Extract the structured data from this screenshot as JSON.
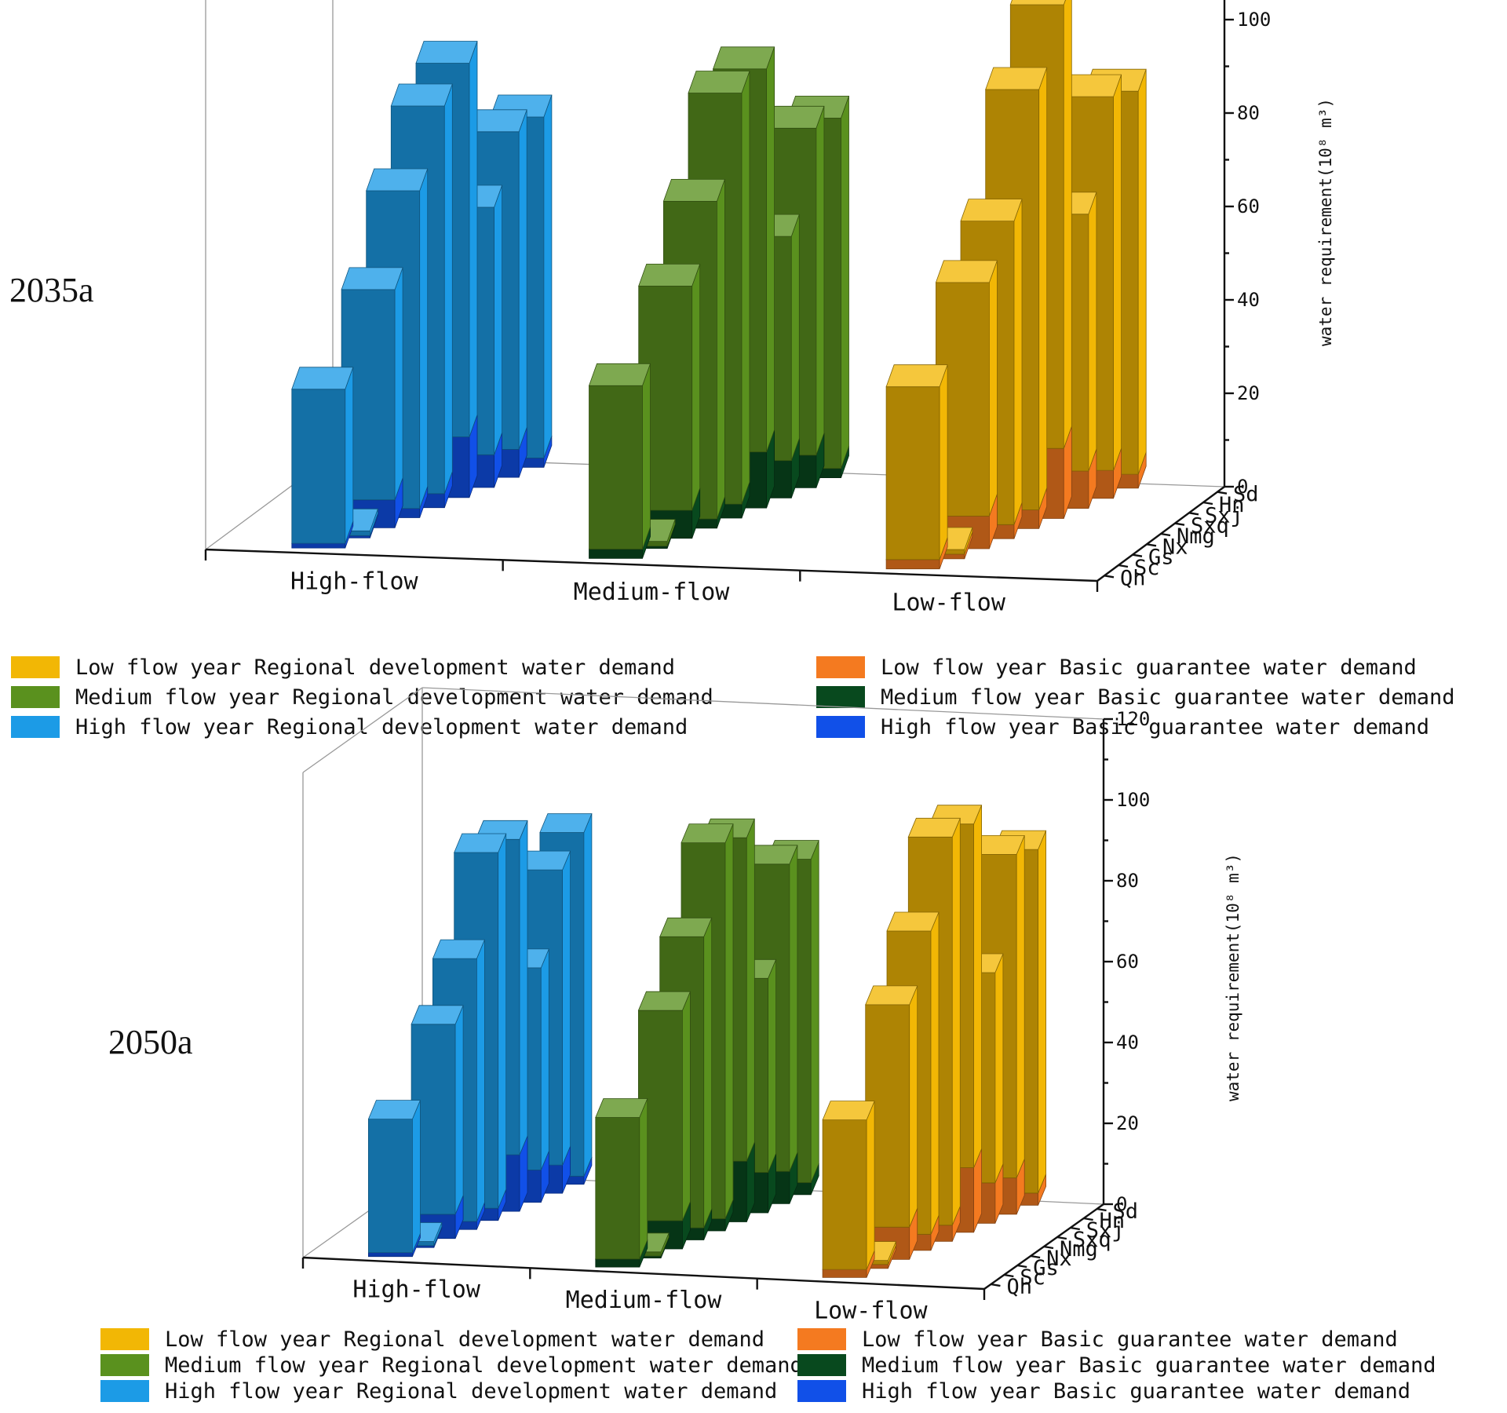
{
  "chart_data": [
    {
      "type": "bar",
      "title": "2035a",
      "ylabel": "water requirement(10⁸ m³)",
      "ylim": [
        0,
        120
      ],
      "yticks": [
        "0",
        "20",
        "40",
        "60",
        "80",
        "100",
        "120"
      ],
      "flow_categories": [
        "High-flow",
        "Medium-flow",
        "Low-flow"
      ],
      "regions": [
        "Qh",
        "Sc",
        "Gs",
        "Nx",
        "Nmg",
        "Sxq",
        "Sxj",
        "Hn",
        "Sd"
      ],
      "series": [
        {
          "name": "High flow year Regional development water demand",
          "flow": "High-flow",
          "kind": "regional",
          "color": "#1c9be6",
          "values": [
            33,
            1,
            45,
            68,
            83,
            80,
            53,
            68,
            73
          ]
        },
        {
          "name": "High flow year Basic guarantee water demand",
          "flow": "High-flow",
          "kind": "basic",
          "color": "#1150e8",
          "values": [
            1,
            0.5,
            6,
            2,
            3,
            13,
            7,
            6,
            2
          ]
        },
        {
          "name": "Medium flow year Regional development water demand",
          "flow": "Medium-flow",
          "kind": "regional",
          "color": "#5a911e",
          "values": [
            35,
            1,
            48,
            68,
            88,
            82,
            48,
            70,
            75
          ]
        },
        {
          "name": "Medium flow year Basic guarantee water demand",
          "flow": "Medium-flow",
          "kind": "basic",
          "color": "#08491e",
          "values": [
            2,
            0.5,
            6,
            2,
            3,
            12,
            8,
            7,
            2
          ]
        },
        {
          "name": "Low flow year Regional development water demand",
          "flow": "Low-flow",
          "kind": "regional",
          "color": "#f2b705",
          "values": [
            37,
            1,
            50,
            65,
            90,
            95,
            55,
            80,
            82
          ]
        },
        {
          "name": "Low flow year Basic guarantee water demand",
          "flow": "Low-flow",
          "kind": "basic",
          "color": "#f47a20",
          "values": [
            2,
            1,
            7,
            3,
            4,
            15,
            8,
            6,
            3
          ]
        }
      ],
      "legend": [
        {
          "label": "Low flow year Regional development water demand",
          "color": "#f2b705"
        },
        {
          "label": "Low flow year Basic guarantee water demand",
          "color": "#f47a20"
        },
        {
          "label": "Medium flow year Regional development water demand",
          "color": "#5a911e"
        },
        {
          "label": "Medium flow year Basic guarantee water demand",
          "color": "#08491e"
        },
        {
          "label": "High flow year Regional development water demand",
          "color": "#1c9be6"
        },
        {
          "label": "High flow year Basic guarantee water demand",
          "color": "#1150e8"
        }
      ]
    },
    {
      "type": "bar",
      "title": "2050a",
      "ylabel": "water requirement(10⁸ m³)",
      "ylim": [
        0,
        120
      ],
      "yticks": [
        "0",
        "20",
        "40",
        "60",
        "80",
        "100",
        "120"
      ],
      "flow_categories": [
        "High-flow",
        "Medium-flow",
        "Low-flow"
      ],
      "regions": [
        "Qh",
        "Sc",
        "Gs",
        "Nx",
        "Nmg",
        "Sxq",
        "Sxj",
        "Hn",
        "Sd"
      ],
      "series": [
        {
          "name": "High flow year Regional development water demand",
          "flow": "High-flow",
          "kind": "regional",
          "color": "#1c9be6",
          "values": [
            33,
            1,
            47,
            65,
            88,
            78,
            50,
            73,
            85
          ]
        },
        {
          "name": "High flow year Basic guarantee water demand",
          "flow": "High-flow",
          "kind": "basic",
          "color": "#1150e8",
          "values": [
            1,
            0.5,
            6,
            2,
            3,
            14,
            8,
            7,
            2
          ]
        },
        {
          "name": "Medium flow year Regional development water demand",
          "flow": "Medium-flow",
          "kind": "regional",
          "color": "#5a911e",
          "values": [
            35,
            1,
            52,
            72,
            93,
            80,
            48,
            76,
            80
          ]
        },
        {
          "name": "Medium flow year Basic guarantee water demand",
          "flow": "Medium-flow",
          "kind": "basic",
          "color": "#08491e",
          "values": [
            2,
            0.5,
            7,
            3,
            3,
            15,
            10,
            8,
            3
          ]
        },
        {
          "name": "Low flow year Regional development water demand",
          "flow": "Low-flow",
          "kind": "regional",
          "color": "#f2b705",
          "values": [
            37,
            1,
            55,
            75,
            96,
            85,
            52,
            80,
            85
          ]
        },
        {
          "name": "Low flow year Basic guarantee water demand",
          "flow": "Low-flow",
          "kind": "basic",
          "color": "#f47a20",
          "values": [
            2,
            1,
            8,
            4,
            4,
            16,
            10,
            9,
            3
          ]
        }
      ],
      "legend": [
        {
          "label": "Low flow year Regional development water demand",
          "color": "#f2b705"
        },
        {
          "label": "Low flow year Basic guarantee water demand",
          "color": "#f47a20"
        },
        {
          "label": "Medium flow year Regional development water demand",
          "color": "#5a911e"
        },
        {
          "label": "Medium flow year Basic guarantee water demand",
          "color": "#08491e"
        },
        {
          "label": "High flow year Regional development water demand",
          "color": "#1c9be6"
        },
        {
          "label": "High flow year Basic guarantee water demand",
          "color": "#1150e8"
        }
      ]
    }
  ]
}
